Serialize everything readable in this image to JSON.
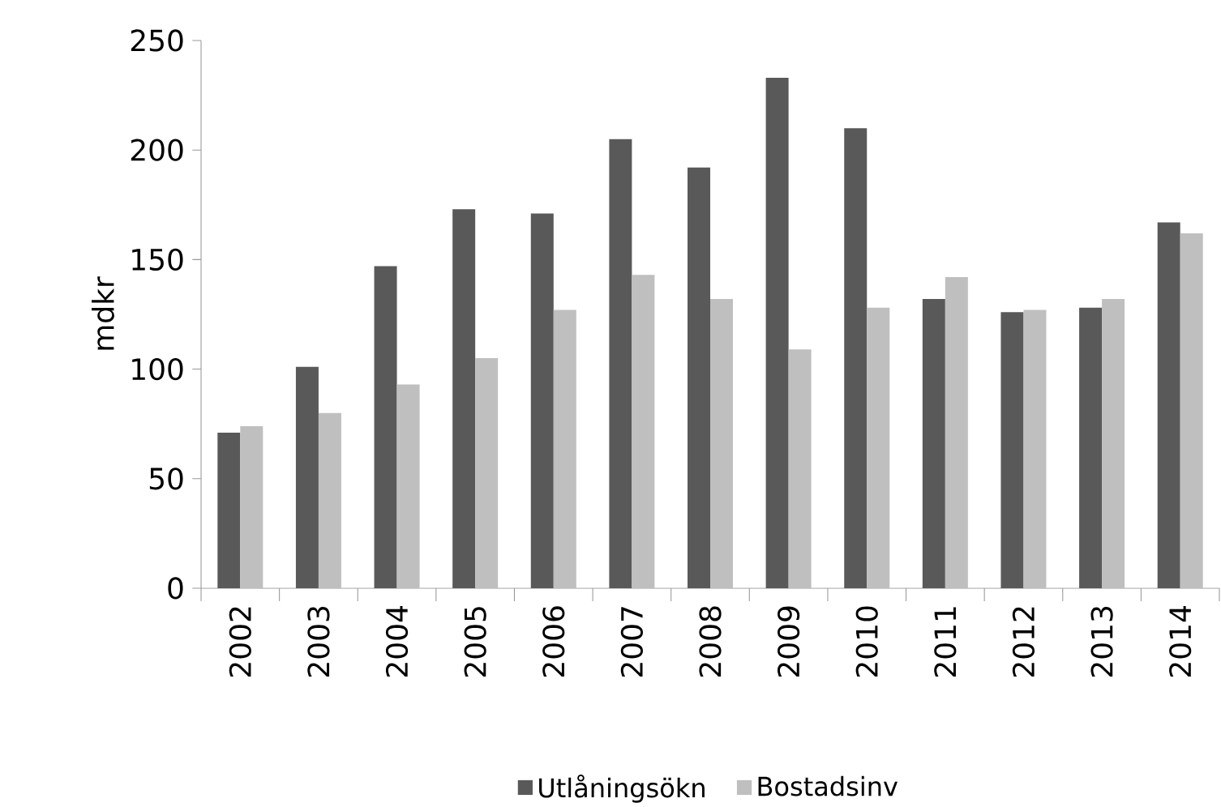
{
  "chart_data": {
    "type": "bar",
    "ylabel": "mdkr",
    "categories": [
      "2002",
      "2003",
      "2004",
      "2005",
      "2006",
      "2007",
      "2008",
      "2009",
      "2010",
      "2011",
      "2012",
      "2013",
      "2014"
    ],
    "series": [
      {
        "name": "Utlåningsökn",
        "color": "#595959",
        "values": [
          71,
          101,
          147,
          173,
          171,
          205,
          192,
          233,
          210,
          132,
          126,
          128,
          167
        ]
      },
      {
        "name": "Bostadsinv",
        "color": "#bfbfbf",
        "values": [
          74,
          80,
          93,
          105,
          127,
          143,
          132,
          109,
          128,
          142,
          127,
          132,
          162
        ]
      }
    ],
    "ylim": [
      0,
      250
    ],
    "yticks": [
      0,
      50,
      100,
      150,
      200,
      250
    ],
    "grid": false,
    "legend": "bottom"
  }
}
